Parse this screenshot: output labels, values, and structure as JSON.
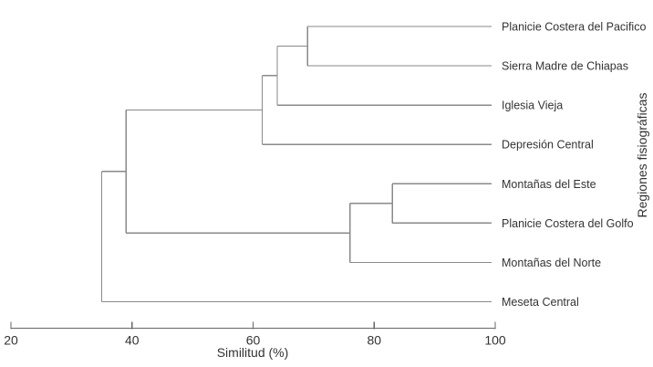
{
  "chart_data": {
    "type": "dendrogram",
    "orientation": "horizontal_left_root",
    "title": "",
    "xlabel": "Similitud (%)",
    "right_axis_label": "Regiones fisiográficas",
    "axis": {
      "min": 20,
      "max": 100,
      "ticks": [
        20,
        40,
        60,
        80,
        100
      ],
      "grid": false
    },
    "leaves": [
      "Planicie Costera del Pacifico",
      "Sierra Madre de Chiapas",
      "Iglesia Vieja",
      "Depresión Central",
      "Montañas del Este",
      "Planicie Costera del Golfo",
      "Montañas del Norte",
      "Meseta Central"
    ],
    "merges": [
      {
        "id": "nodeA",
        "children": [
          "Planicie Costera del Pacifico",
          "Sierra Madre de Chiapas"
        ],
        "similarity": 69
      },
      {
        "id": "nodeB",
        "children": [
          "nodeA",
          "Iglesia Vieja"
        ],
        "similarity": 64
      },
      {
        "id": "nodeC",
        "children": [
          "nodeB",
          "Depresión Central"
        ],
        "similarity": 61.5
      },
      {
        "id": "nodeD",
        "children": [
          "Montañas del Este",
          "Planicie Costera del Golfo"
        ],
        "similarity": 83
      },
      {
        "id": "nodeE",
        "children": [
          "nodeD",
          "Montañas del Norte"
        ],
        "similarity": 76
      },
      {
        "id": "nodeF",
        "children": [
          "nodeC",
          "nodeE"
        ],
        "similarity": 39
      },
      {
        "id": "root",
        "children": [
          "nodeF",
          "Meseta Central"
        ],
        "similarity": 35
      }
    ],
    "colors": {
      "branch": "#8a8a8a",
      "axis": "#666666",
      "text": "#333333"
    }
  }
}
